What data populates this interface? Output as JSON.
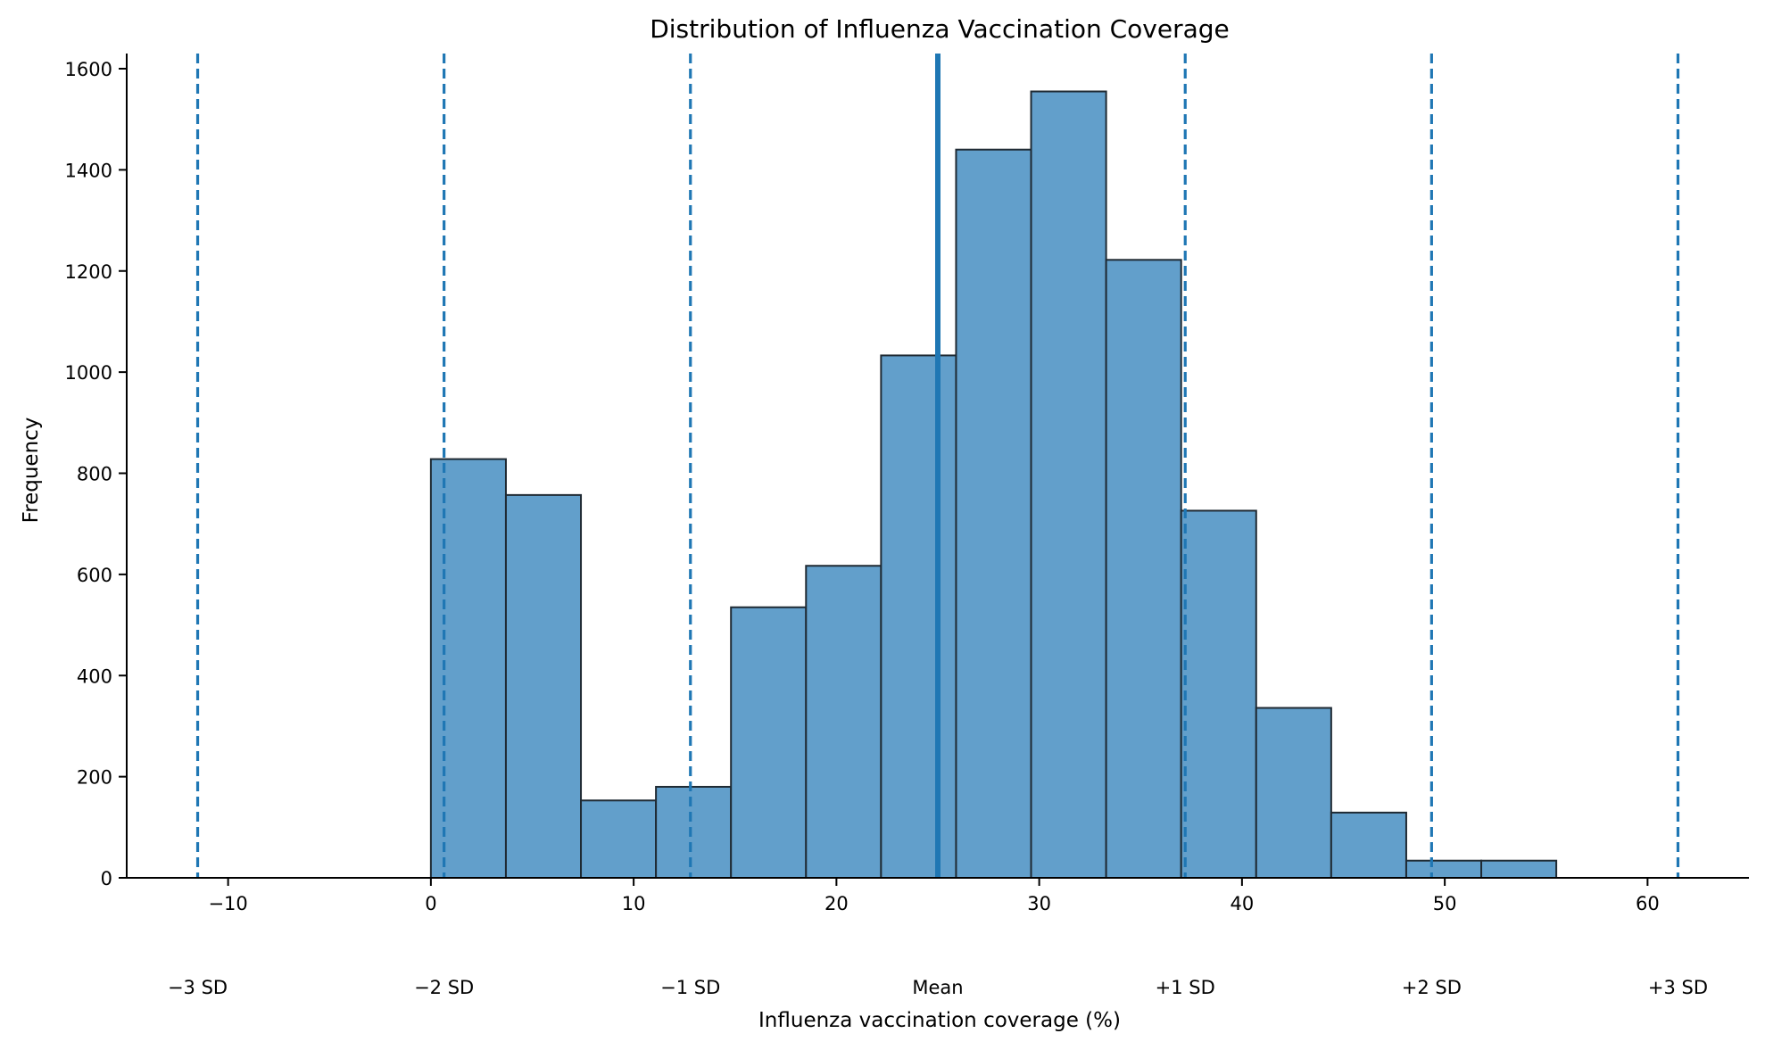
{
  "chart_data": {
    "type": "bar",
    "title": "Distribution of Influenza Vaccination Coverage",
    "xlabel": "Influenza vaccination coverage (%)",
    "ylabel": "Frequency",
    "xlim": [
      -15,
      65
    ],
    "ylim": [
      0,
      1630
    ],
    "x_ticks": [
      -10,
      0,
      10,
      20,
      30,
      40,
      50,
      60
    ],
    "x_tick_labels": [
      "−10",
      "0",
      "10",
      "20",
      "30",
      "40",
      "50",
      "60"
    ],
    "y_ticks": [
      0,
      200,
      400,
      600,
      800,
      1000,
      1200,
      1400,
      1600
    ],
    "y_tick_labels": [
      "0",
      "200",
      "400",
      "600",
      "800",
      "1000",
      "1200",
      "1400",
      "1600"
    ],
    "bins": [
      {
        "x0": 0.0,
        "x1": 3.7,
        "count": 828
      },
      {
        "x0": 3.7,
        "x1": 7.4,
        "count": 757
      },
      {
        "x0": 7.4,
        "x1": 11.1,
        "count": 153
      },
      {
        "x0": 11.1,
        "x1": 14.8,
        "count": 180
      },
      {
        "x0": 14.8,
        "x1": 18.5,
        "count": 535
      },
      {
        "x0": 18.5,
        "x1": 22.2,
        "count": 617
      },
      {
        "x0": 22.2,
        "x1": 25.9,
        "count": 1033
      },
      {
        "x0": 25.9,
        "x1": 29.6,
        "count": 1440
      },
      {
        "x0": 29.6,
        "x1": 33.3,
        "count": 1555
      },
      {
        "x0": 33.3,
        "x1": 37.0,
        "count": 1222
      },
      {
        "x0": 37.0,
        "x1": 40.7,
        "count": 726
      },
      {
        "x0": 40.7,
        "x1": 44.4,
        "count": 336
      },
      {
        "x0": 44.4,
        "x1": 48.1,
        "count": 129
      },
      {
        "x0": 48.1,
        "x1": 51.8,
        "count": 34
      },
      {
        "x0": 51.8,
        "x1": 55.5,
        "count": 34
      }
    ],
    "mean_line": {
      "label": "Mean",
      "x": 25.0
    },
    "sd_lines": [
      {
        "label": "−3 SD",
        "x": -11.5
      },
      {
        "label": "−2 SD",
        "x": 0.65
      },
      {
        "label": "−1 SD",
        "x": 12.8
      },
      {
        "label": "+1 SD",
        "x": 37.2
      },
      {
        "label": "+2 SD",
        "x": 49.35
      },
      {
        "label": "+3 SD",
        "x": 61.5
      }
    ],
    "grid": false,
    "colors": {
      "bar_fill": "#629fcb",
      "bar_edge": "#1f2a33",
      "reference_lines": "#1f77b4",
      "axis": "#000000"
    }
  }
}
